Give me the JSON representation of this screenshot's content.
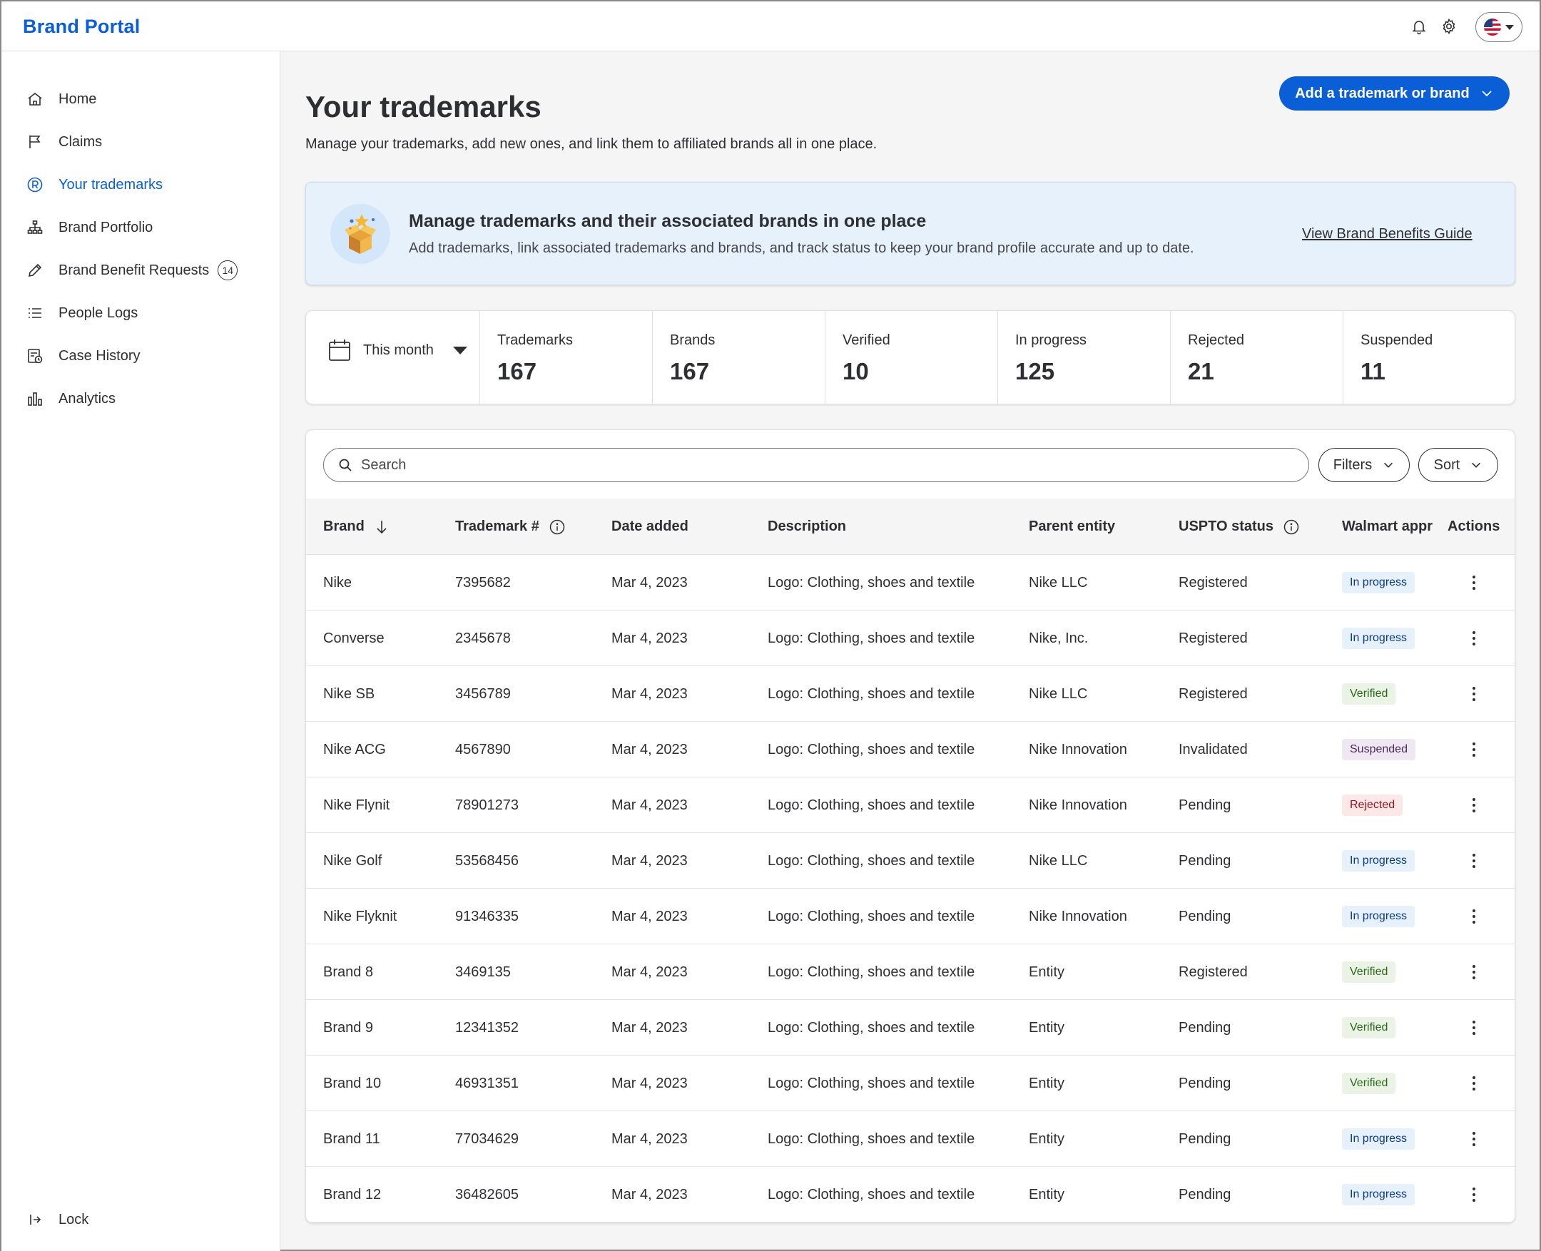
{
  "app": {
    "title": "Brand Portal"
  },
  "topbar": {
    "icons": [
      "bell-icon",
      "gear-icon"
    ],
    "locale_flag": "us-flag-icon"
  },
  "sidebar": {
    "items": [
      {
        "label": "Home",
        "icon": "home-icon",
        "active": false
      },
      {
        "label": "Claims",
        "icon": "flag-icon",
        "active": false
      },
      {
        "label": "Your trademarks",
        "icon": "registered-icon",
        "active": true
      },
      {
        "label": "Brand Portfolio",
        "icon": "hierarchy-icon",
        "active": false
      },
      {
        "label": "Brand Benefit Requests",
        "icon": "pencil-icon",
        "active": false,
        "count": "14"
      },
      {
        "label": "People Logs",
        "icon": "list-icon",
        "active": false
      },
      {
        "label": "Case History",
        "icon": "history-icon",
        "active": false
      },
      {
        "label": "Analytics",
        "icon": "bar-chart-icon",
        "active": false
      }
    ],
    "lock_label": "Lock"
  },
  "header": {
    "title": "Your trademarks",
    "subtitle": "Manage your trademarks, add new ones, and link them to affiliated brands all in one place.",
    "primary_action": "Add a trademark or brand"
  },
  "banner": {
    "title": "Manage trademarks and their associated brands in one place",
    "text": "Add trademarks, link associated trademarks and brands, and track status to keep your brand profile accurate and up to date.",
    "link": "View Brand Benefits Guide"
  },
  "stats": {
    "period": "This month",
    "items": [
      {
        "label": "Trademarks",
        "value": "167"
      },
      {
        "label": "Brands",
        "value": "167"
      },
      {
        "label": "Verified",
        "value": "10"
      },
      {
        "label": "In progress",
        "value": "125"
      },
      {
        "label": "Rejected",
        "value": "21"
      },
      {
        "label": "Suspended",
        "value": "11"
      }
    ]
  },
  "toolbar": {
    "search_placeholder": "Search",
    "filters_label": "Filters",
    "sort_label": "Sort"
  },
  "table": {
    "columns": [
      "Brand",
      "Trademark #",
      "Date added",
      "Description",
      "Parent entity",
      "USPTO status",
      "Walmart appr",
      "Actions"
    ],
    "rows": [
      {
        "brand": "Nike",
        "trademark": "7395682",
        "date": "Mar 4, 2023",
        "description": "Logo: Clothing, shoes and textile",
        "parent": "Nike LLC",
        "uspto": "Registered",
        "walmart": "In progress"
      },
      {
        "brand": "Converse",
        "trademark": "2345678",
        "date": "Mar 4, 2023",
        "description": "Logo: Clothing, shoes and textile",
        "parent": "Nike, Inc.",
        "uspto": "Registered",
        "walmart": "In progress"
      },
      {
        "brand": "Nike SB",
        "trademark": "3456789",
        "date": "Mar 4, 2023",
        "description": "Logo: Clothing, shoes and textile",
        "parent": "Nike LLC",
        "uspto": "Registered",
        "walmart": "Verified"
      },
      {
        "brand": "Nike ACG",
        "trademark": "4567890",
        "date": "Mar 4, 2023",
        "description": "Logo: Clothing, shoes and textile",
        "parent": "Nike Innovation",
        "uspto": "Invalidated",
        "walmart": "Suspended"
      },
      {
        "brand": "Nike Flynit",
        "trademark": "78901273",
        "date": "Mar 4, 2023",
        "description": "Logo: Clothing, shoes and textile",
        "parent": "Nike Innovation",
        "uspto": "Pending",
        "walmart": "Rejected"
      },
      {
        "brand": "Nike Golf",
        "trademark": "53568456",
        "date": "Mar 4, 2023",
        "description": "Logo: Clothing, shoes and textile",
        "parent": "Nike LLC",
        "uspto": "Pending",
        "walmart": "In progress"
      },
      {
        "brand": "Nike Flyknit",
        "trademark": "91346335",
        "date": "Mar 4, 2023",
        "description": "Logo: Clothing, shoes and textile",
        "parent": "Nike Innovation",
        "uspto": "Pending",
        "walmart": "In progress"
      },
      {
        "brand": "Brand 8",
        "trademark": "3469135",
        "date": "Mar 4, 2023",
        "description": "Logo: Clothing, shoes and textile",
        "parent": "Entity",
        "uspto": "Registered",
        "walmart": "Verified"
      },
      {
        "brand": "Brand 9",
        "trademark": "12341352",
        "date": "Mar 4, 2023",
        "description": "Logo: Clothing, shoes and textile",
        "parent": "Entity",
        "uspto": "Pending",
        "walmart": "Verified"
      },
      {
        "brand": "Brand 10",
        "trademark": "46931351",
        "date": "Mar 4, 2023",
        "description": "Logo: Clothing, shoes and textile",
        "parent": "Entity",
        "uspto": "Pending",
        "walmart": "Verified"
      },
      {
        "brand": "Brand 11",
        "trademark": "77034629",
        "date": "Mar 4, 2023",
        "description": "Logo: Clothing, shoes and textile",
        "parent": "Entity",
        "uspto": "Pending",
        "walmart": "In progress"
      },
      {
        "brand": "Brand 12",
        "trademark": "36482605",
        "date": "Mar 4, 2023",
        "description": "Logo: Clothing, shoes and textile",
        "parent": "Entity",
        "uspto": "Pending",
        "walmart": "In progress"
      }
    ]
  },
  "colors": {
    "accent": "#0a5fd7",
    "banner_bg": "#e6f1fc"
  }
}
